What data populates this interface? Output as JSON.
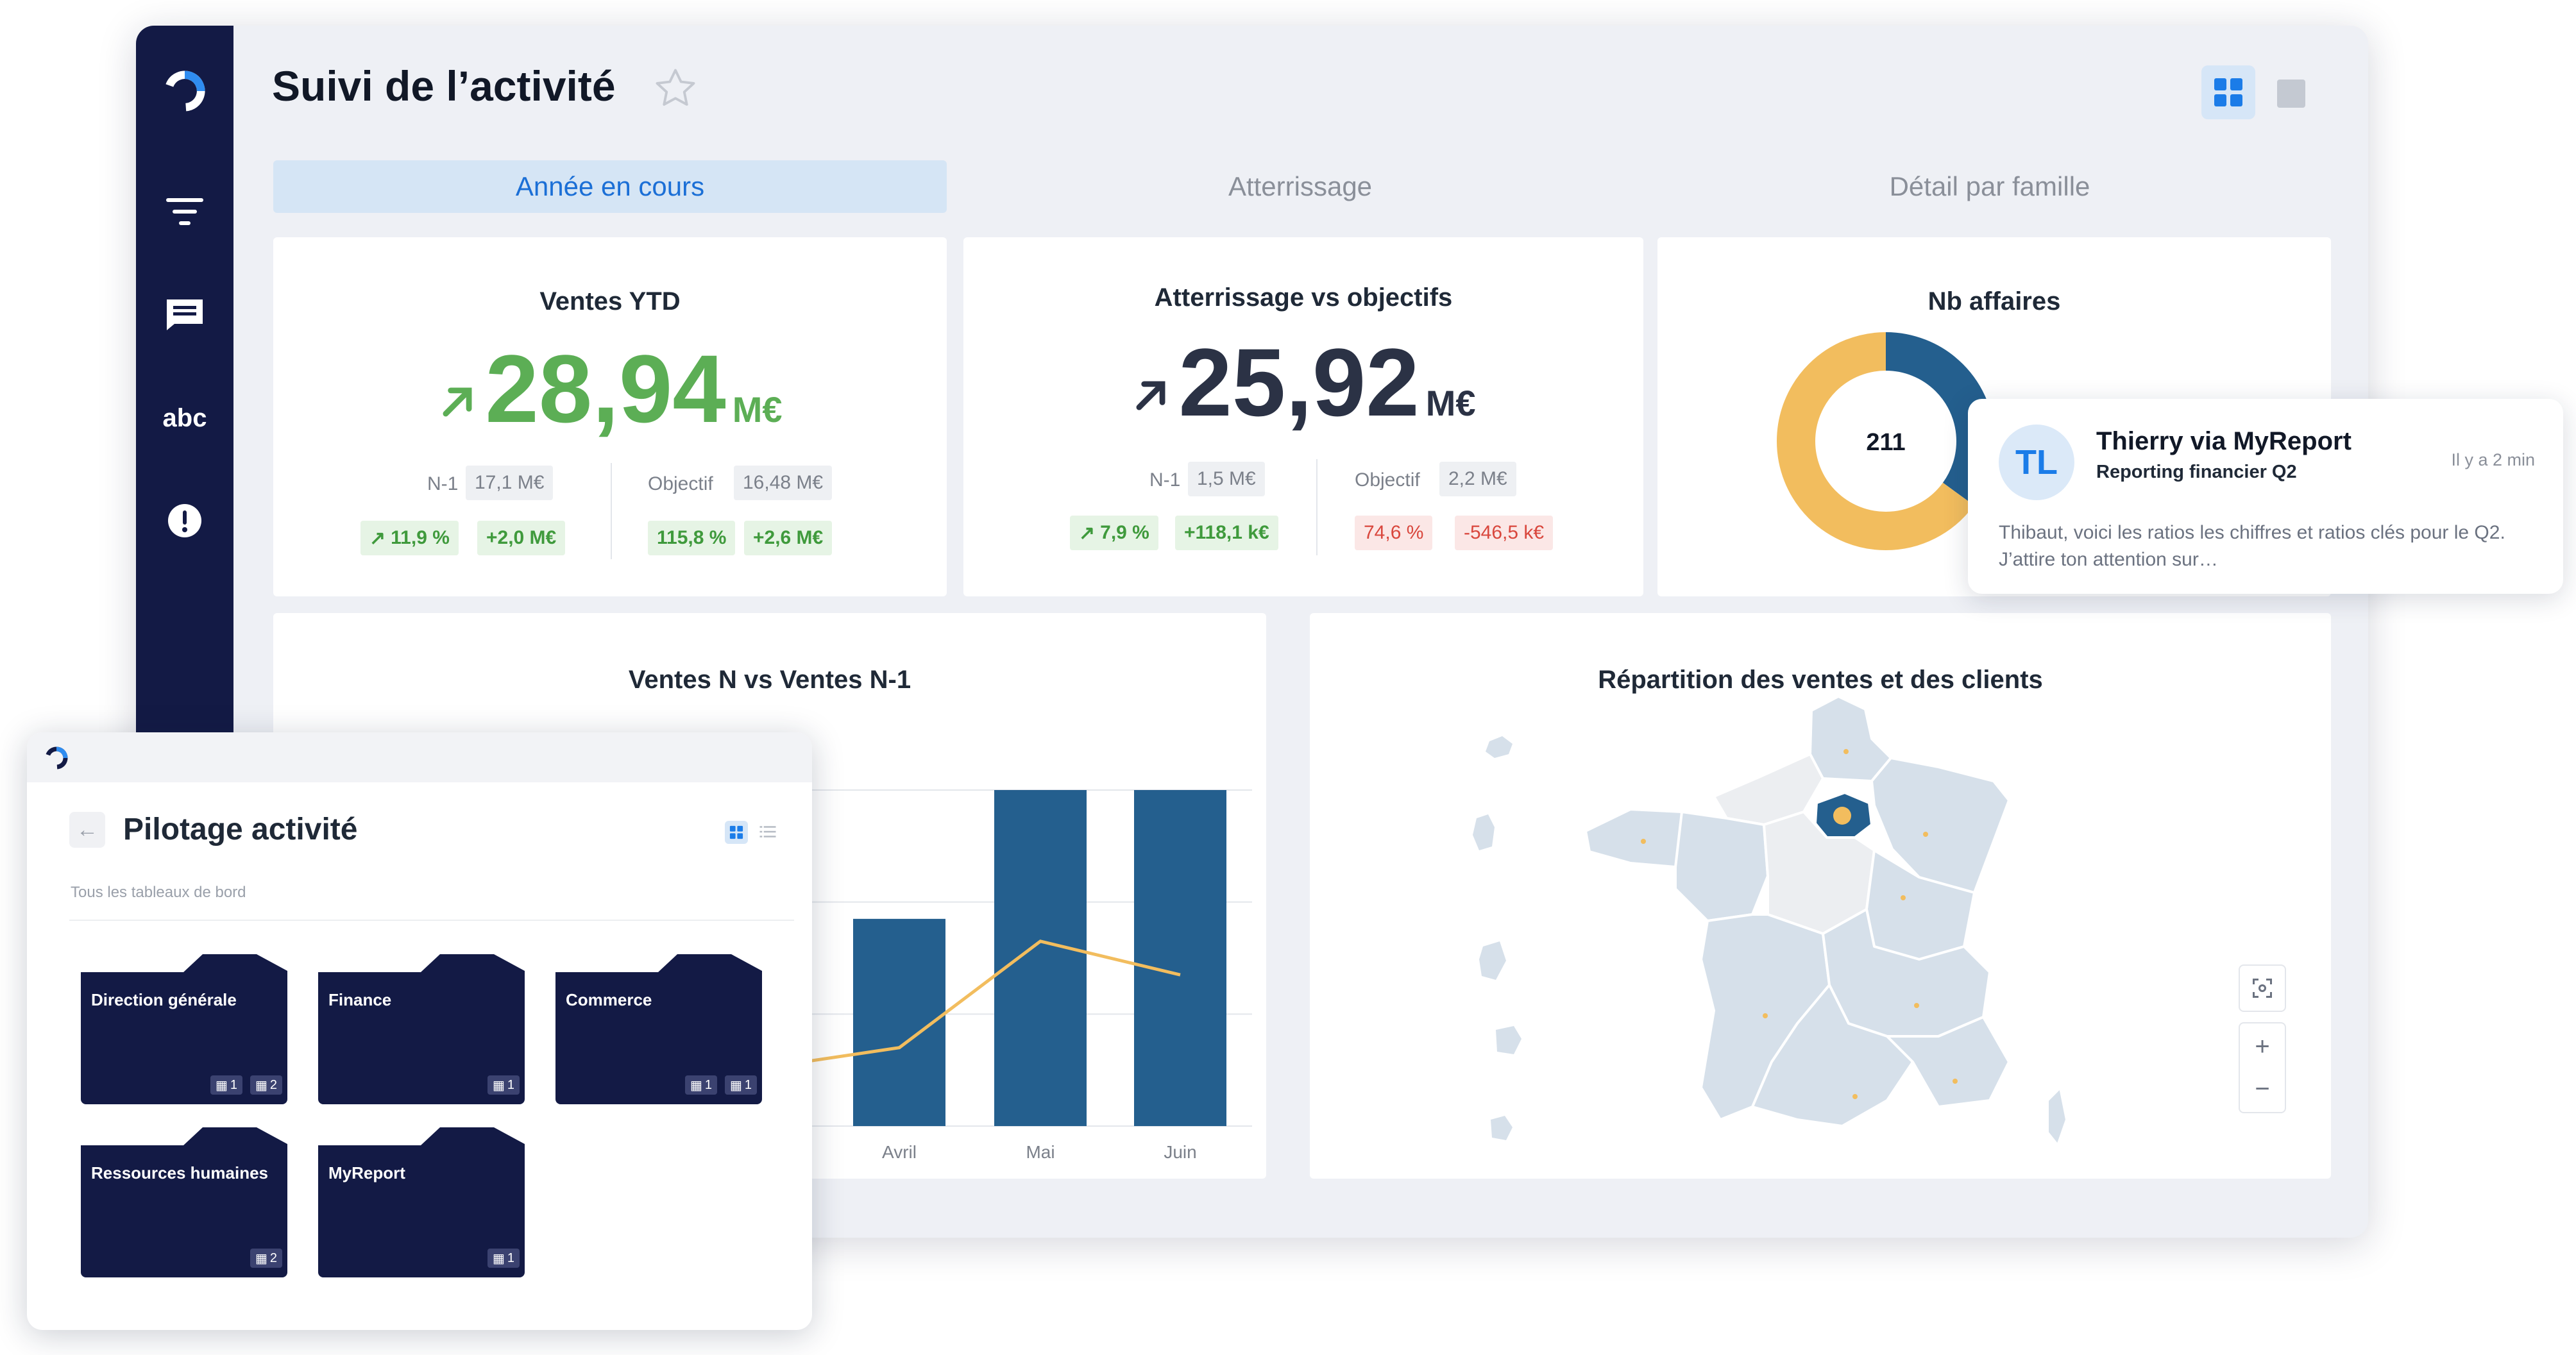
{
  "app": {
    "title": "Suivi de l’activité",
    "icons": {
      "logo": "logo-icon",
      "star": "star-icon",
      "grid": "grid-view-icon",
      "list": "list-view-icon"
    }
  },
  "sidebar": {
    "items": [
      {
        "icon": "filter-icon"
      },
      {
        "icon": "comment-icon"
      },
      {
        "label": "abc",
        "icon": "text-icon"
      },
      {
        "icon": "alert-icon"
      }
    ]
  },
  "tabs": [
    {
      "label": "Année en cours",
      "active": true
    },
    {
      "label": "Atterrissage",
      "active": false
    },
    {
      "label": "Détail par famille",
      "active": false
    }
  ],
  "kpi_ventes": {
    "title": "Ventes YTD",
    "value": "28,94",
    "unit": "M€",
    "n1_label": "N-1",
    "n1_value": "17,1 M€",
    "obj_label": "Objectif",
    "obj_value": "16,48 M€",
    "n1_pct": "11,9 %",
    "n1_delta": "+2,0 M€",
    "obj_pct": "115,8 %",
    "obj_delta": "+2,6 M€",
    "color": "#5cae55"
  },
  "kpi_atterrissage": {
    "title": "Atterrissage vs objectifs",
    "value": "25,92",
    "unit": "M€",
    "n1_label": "N-1",
    "n1_value": "1,5 M€",
    "obj_label": "Objectif",
    "obj_value": "2,2 M€",
    "n1_pct": "7,9 %",
    "n1_delta": "+118,1 k€",
    "obj_pct": "74,6 %",
    "obj_delta": "-546,5 k€",
    "color": "#2b3245"
  },
  "kpi_affaires": {
    "title": "Nb affaires",
    "center_value": "211",
    "segments": [
      {
        "value": 0.35,
        "color": "#245f8e"
      },
      {
        "value": 0.65,
        "color": "#f2bd5e"
      }
    ]
  },
  "notification": {
    "initials": "TL",
    "sender": "Thierry via MyReport",
    "subject": "Reporting financier Q2",
    "time": "Il y a 2 min",
    "body": "Thibaut, voici les ratios les chiffres et ratios clés pour le Q2. J’attire ton attention sur…"
  },
  "chart_data": {
    "type": "bar",
    "title": "Ventes N vs Ventes N-1",
    "categories": [
      "Avril",
      "Mai",
      "Juin"
    ],
    "series": [
      {
        "values": [
          3.7,
          6.0,
          6.0
        ],
        "color": "#245f8e"
      },
      {
        "values": [
          1.4,
          3.3,
          2.7
        ],
        "color": "#f2bd5e",
        "kind": "line"
      }
    ],
    "ylim": [
      0,
      6
    ],
    "grid": true
  },
  "map": {
    "title": "Répartition des ventes et des clients",
    "controls": {
      "recenter": "recenter-icon",
      "zoom_in": "+",
      "zoom_out": "−"
    }
  },
  "panel": {
    "title": "Pilotage activité",
    "subtitle": "Tous les tableaux de bord",
    "folders": [
      {
        "label": "Direction générale",
        "badges": [
          "1",
          "2"
        ]
      },
      {
        "label": "Finance",
        "badges": [
          "1"
        ]
      },
      {
        "label": "Commerce",
        "badges": [
          "1",
          "1"
        ]
      },
      {
        "label": "Ressources humaines",
        "badges": [
          "2"
        ]
      },
      {
        "label": "MyReport",
        "badges": [
          "1"
        ]
      }
    ]
  }
}
